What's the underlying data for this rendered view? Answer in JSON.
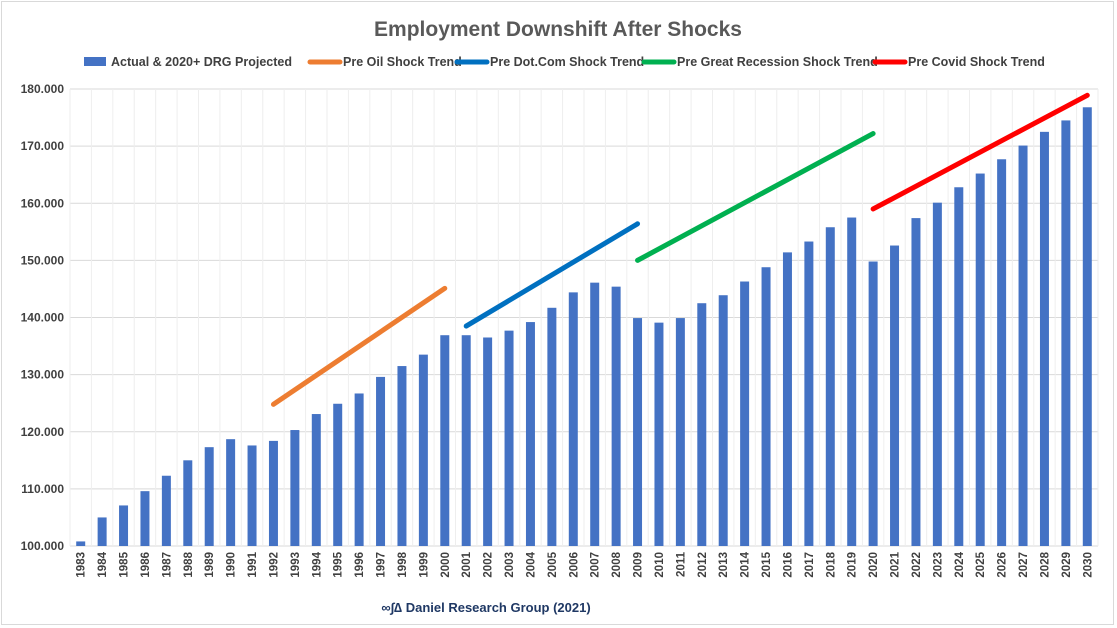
{
  "chart_data": {
    "type": "bar",
    "title": "Employment Downshift After Shocks",
    "credit": "∞∫∆ Daniel Research Group (2021)",
    "ylim": [
      100,
      180
    ],
    "yticks": [
      "100.000",
      "110.000",
      "120.000",
      "130.000",
      "140.000",
      "150.000",
      "160.000",
      "170.000",
      "180.000"
    ],
    "ytick_values": [
      100,
      110,
      120,
      130,
      140,
      150,
      160,
      170,
      180
    ],
    "grid": true,
    "legend_position": "top",
    "categories": [
      "1983",
      "1984",
      "1985",
      "1986",
      "1987",
      "1988",
      "1989",
      "1990",
      "1991",
      "1992",
      "1993",
      "1994",
      "1995",
      "1996",
      "1997",
      "1998",
      "1999",
      "2000",
      "2001",
      "2002",
      "2003",
      "2004",
      "2005",
      "2006",
      "2007",
      "2008",
      "2009",
      "2010",
      "2011",
      "2012",
      "2013",
      "2014",
      "2015",
      "2016",
      "2017",
      "2018",
      "2019",
      "2020",
      "2021",
      "2022",
      "2023",
      "2024",
      "2025",
      "2026",
      "2027",
      "2028",
      "2029",
      "2030"
    ],
    "series": [
      {
        "name": "Actual &  2020+ DRG Projected",
        "kind": "bar",
        "color": "#4472c4",
        "values": [
          100.8,
          105.0,
          107.1,
          109.6,
          112.3,
          115.0,
          117.3,
          118.7,
          117.6,
          118.4,
          120.3,
          123.1,
          124.9,
          126.7,
          129.6,
          131.5,
          133.5,
          136.9,
          136.9,
          136.5,
          137.7,
          139.2,
          141.7,
          144.4,
          146.1,
          145.4,
          139.9,
          139.1,
          139.9,
          142.5,
          143.9,
          146.3,
          148.8,
          151.4,
          153.3,
          155.8,
          157.5,
          149.8,
          152.6,
          157.4,
          160.1,
          162.8,
          165.2,
          167.7,
          170.1,
          172.5,
          174.5,
          176.8
        ]
      },
      {
        "name": "Pre Oil Shock Trend",
        "kind": "line",
        "color": "#ed7d31",
        "x": [
          "1992",
          "2000"
        ],
        "y": [
          124.8,
          145.1
        ]
      },
      {
        "name": "Pre Dot.Com Shock Trend",
        "kind": "line",
        "color": "#0070c0",
        "x": [
          "2001",
          "2009"
        ],
        "y": [
          138.5,
          156.4
        ]
      },
      {
        "name": "Pre Great Recession Shock Trend",
        "kind": "line",
        "color": "#00b050",
        "x": [
          "2009",
          "2020"
        ],
        "y": [
          150.0,
          172.2
        ]
      },
      {
        "name": "Pre Covid Shock Trend",
        "kind": "line",
        "color": "#ff0000",
        "x": [
          "2020",
          "2030"
        ],
        "y": [
          159.0,
          178.9
        ]
      }
    ]
  },
  "colors": {
    "gridline": "#d9d9d9",
    "text": "#404040",
    "credit": "#1f3864"
  }
}
